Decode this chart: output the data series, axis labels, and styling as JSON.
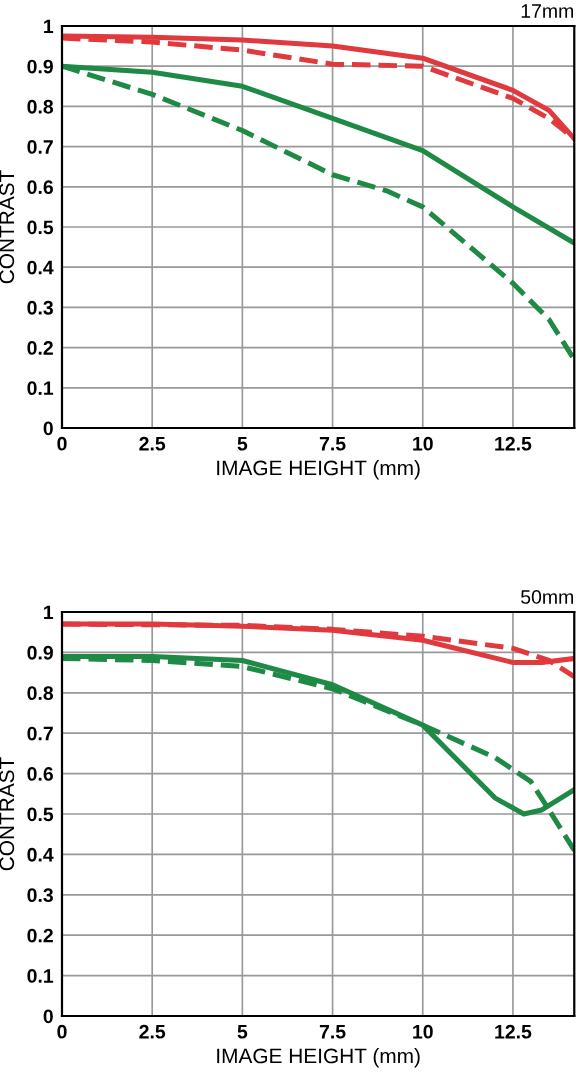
{
  "chart_data": [
    {
      "type": "line",
      "title": "17mm",
      "xlabel": "IMAGE HEIGHT (mm)",
      "ylabel": "CONTRAST",
      "xlim": [
        0,
        14.2
      ],
      "ylim": [
        0,
        1
      ],
      "xticks": [
        0,
        2.5,
        5,
        7.5,
        10,
        12.5
      ],
      "yticks": [
        0,
        0.1,
        0.2,
        0.3,
        0.4,
        0.5,
        0.6,
        0.7,
        0.8,
        0.9,
        1
      ],
      "grid": true,
      "legend": false,
      "marker": "none",
      "series": [
        {
          "color": "#e0393e",
          "line_style": "solid",
          "x": [
            0,
            2.5,
            5,
            7.5,
            10,
            12.5,
            13.5,
            14.2
          ],
          "values": [
            0.975,
            0.972,
            0.965,
            0.95,
            0.92,
            0.84,
            0.79,
            0.72
          ]
        },
        {
          "color": "#e0393e",
          "line_style": "dashed",
          "x": [
            0,
            2.5,
            5,
            7.5,
            10,
            12.5,
            13.5,
            14.2
          ],
          "values": [
            0.97,
            0.96,
            0.94,
            0.905,
            0.9,
            0.82,
            0.77,
            0.72
          ]
        },
        {
          "color": "#1e8a45",
          "line_style": "solid",
          "x": [
            0,
            2.5,
            5,
            7.5,
            10,
            12.5,
            14.2
          ],
          "values": [
            0.9,
            0.885,
            0.85,
            0.77,
            0.69,
            0.55,
            0.46
          ]
        },
        {
          "color": "#1e8a45",
          "line_style": "dashed",
          "x": [
            0,
            2.5,
            5,
            7.5,
            9,
            10,
            12.5,
            13.5,
            14.2
          ],
          "values": [
            0.9,
            0.83,
            0.74,
            0.63,
            0.59,
            0.55,
            0.36,
            0.27,
            0.17
          ]
        }
      ]
    },
    {
      "type": "line",
      "title": "50mm",
      "xlabel": "IMAGE HEIGHT (mm)",
      "ylabel": "CONTRAST",
      "xlim": [
        0,
        14.2
      ],
      "ylim": [
        0,
        1
      ],
      "xticks": [
        0,
        2.5,
        5,
        7.5,
        10,
        12.5
      ],
      "yticks": [
        0,
        0.1,
        0.2,
        0.3,
        0.4,
        0.5,
        0.6,
        0.7,
        0.8,
        0.9,
        1
      ],
      "grid": true,
      "legend": false,
      "marker": "none",
      "series": [
        {
          "color": "#e0393e",
          "line_style": "solid",
          "x": [
            0,
            2.5,
            5,
            7.5,
            10,
            12.5,
            13.3,
            14.2
          ],
          "values": [
            0.97,
            0.97,
            0.965,
            0.955,
            0.93,
            0.875,
            0.875,
            0.885
          ]
        },
        {
          "color": "#e0393e",
          "line_style": "dashed",
          "x": [
            0,
            5,
            7.5,
            10,
            12.5,
            13.5,
            14.2
          ],
          "values": [
            0.97,
            0.967,
            0.957,
            0.94,
            0.91,
            0.88,
            0.84
          ]
        },
        {
          "color": "#1e8a45",
          "line_style": "solid",
          "x": [
            0,
            2.5,
            5,
            7.5,
            10,
            11,
            12,
            12.8,
            13.3,
            14.2
          ],
          "values": [
            0.89,
            0.89,
            0.88,
            0.82,
            0.72,
            0.63,
            0.54,
            0.5,
            0.51,
            0.56
          ]
        },
        {
          "color": "#1e8a45",
          "line_style": "dashed",
          "x": [
            0,
            2.5,
            5,
            7.5,
            10,
            12,
            13,
            13.5,
            14.2
          ],
          "values": [
            0.885,
            0.88,
            0.865,
            0.81,
            0.72,
            0.64,
            0.58,
            0.51,
            0.41
          ]
        }
      ]
    }
  ]
}
